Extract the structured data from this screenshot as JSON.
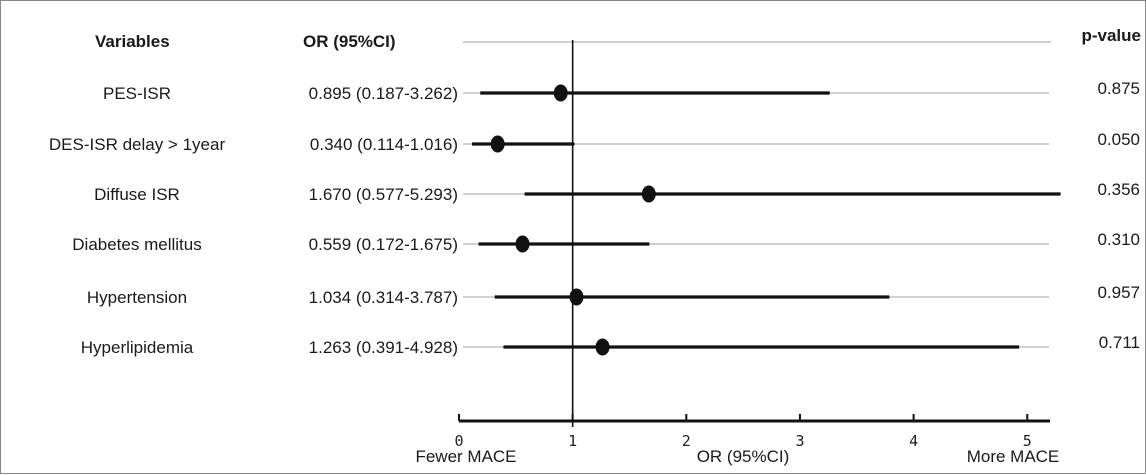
{
  "chart_data": {
    "type": "forest",
    "headers": {
      "variables": "Variables",
      "or": "OR (95%CI)",
      "p": "p-value"
    },
    "rows": [
      {
        "variable": "PES-ISR",
        "or_text": "0.895 (0.187-3.262)",
        "or": 0.895,
        "lo": 0.187,
        "hi": 3.262,
        "p": "0.875"
      },
      {
        "variable": "DES-ISR delay  > 1year",
        "or_text": "0.340 (0.114-1.016)",
        "or": 0.34,
        "lo": 0.114,
        "hi": 1.016,
        "p": "0.050"
      },
      {
        "variable": "Diffuse ISR",
        "or_text": "1.670 (0.577-5.293)",
        "or": 1.67,
        "lo": 0.577,
        "hi": 5.293,
        "p": "0.356"
      },
      {
        "variable": "Diabetes mellitus",
        "or_text": "0.559 (0.172-1.675)",
        "or": 0.559,
        "lo": 0.172,
        "hi": 1.675,
        "p": "0.310"
      },
      {
        "variable": "Hypertension",
        "or_text": "1.034 (0.314-3.787)",
        "or": 1.034,
        "lo": 0.314,
        "hi": 3.787,
        "p": "0.957"
      },
      {
        "variable": "Hyperlipidemia",
        "or_text": "1.263 (0.391-4.928)",
        "or": 1.263,
        "lo": 0.391,
        "hi": 4.928,
        "p": "0.711"
      }
    ],
    "x_ticks": [
      0,
      1,
      2,
      3,
      4,
      5
    ],
    "xlim": [
      0,
      5.2
    ],
    "reference_line": 1,
    "footer": {
      "left": "Fewer MACE",
      "center": "OR (95%CI)",
      "right": "More MACE"
    }
  }
}
